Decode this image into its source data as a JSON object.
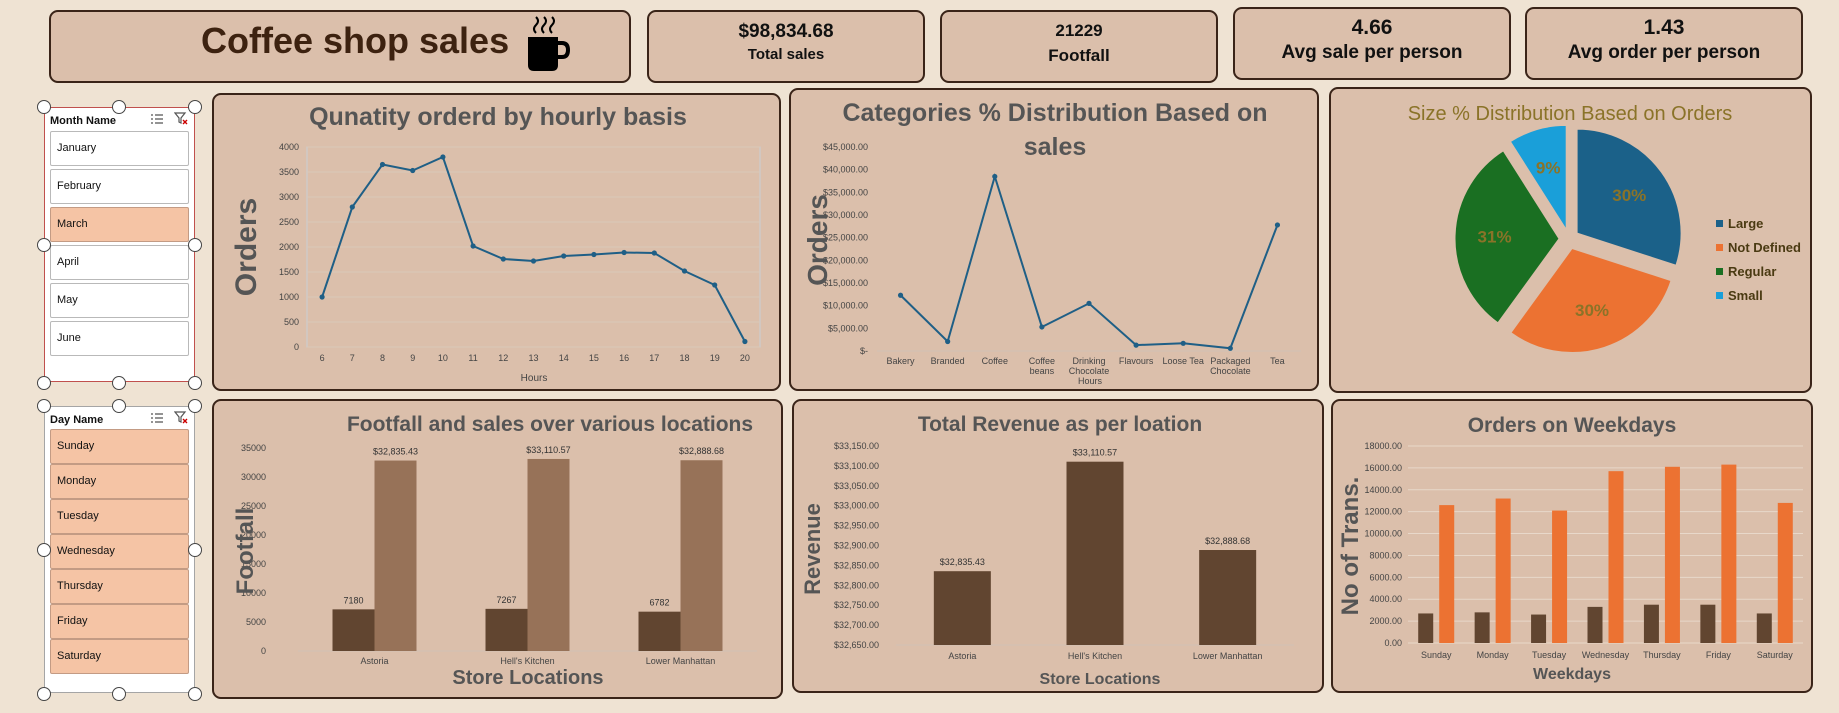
{
  "header": {
    "title": "Coffee shop sales",
    "icon": "coffee-cup-icon"
  },
  "kpis": [
    {
      "value": "$98,834.68",
      "label": "Total sales"
    },
    {
      "value": "21229",
      "label": "Footfall"
    },
    {
      "value": "4.66",
      "label": "Avg sale per person"
    },
    {
      "value": "1.43",
      "label": "Avg order per person"
    }
  ],
  "slicers": {
    "month": {
      "title": "Month Name",
      "items": [
        {
          "label": "January",
          "selected": false
        },
        {
          "label": "February",
          "selected": false
        },
        {
          "label": "March",
          "selected": true
        },
        {
          "label": "April",
          "selected": false
        },
        {
          "label": "May",
          "selected": false
        },
        {
          "label": "June",
          "selected": false
        }
      ]
    },
    "day": {
      "title": "Day Name",
      "items": [
        {
          "label": "Sunday",
          "selected": true
        },
        {
          "label": "Monday",
          "selected": true
        },
        {
          "label": "Tuesday",
          "selected": true
        },
        {
          "label": "Wednesday",
          "selected": true
        },
        {
          "label": "Thursday",
          "selected": true
        },
        {
          "label": "Friday",
          "selected": true
        },
        {
          "label": "Saturday",
          "selected": true
        }
      ]
    }
  },
  "colors": {
    "card_bg": "#dbbfab",
    "border": "#3a2418",
    "line": "#1f5f86",
    "bar_dark": "#614530",
    "bar_light": "#977258",
    "orange": "#ec7232",
    "pie_large": "#1b6189",
    "pie_not_defined": "#ec7232",
    "pie_regular": "#1a6f22",
    "pie_small": "#1a9fd9"
  },
  "chart_data": [
    {
      "id": "hourly",
      "type": "line",
      "title": "Qunatity orderd by hourly basis",
      "xlabel": "Hours",
      "ylabel": "Orders",
      "x": [
        "6",
        "7",
        "8",
        "9",
        "10",
        "11",
        "12",
        "13",
        "14",
        "15",
        "16",
        "17",
        "18",
        "19",
        "20"
      ],
      "values": [
        1000,
        2800,
        3650,
        3530,
        3800,
        2020,
        1760,
        1720,
        1820,
        1850,
        1890,
        1880,
        1520,
        1240,
        110
      ],
      "ylim": [
        0,
        4000
      ],
      "yticks": [
        "0",
        "500",
        "1000",
        "1500",
        "2000",
        "2500",
        "3000",
        "3500",
        "4000"
      ],
      "grid": true
    },
    {
      "id": "categories",
      "type": "line",
      "title": "Categories % Distribution Based on sales",
      "xlabel": "",
      "ylabel": "Orders",
      "categories": [
        "Bakery",
        "Branded",
        "Coffee",
        "Coffee beans",
        "Drinking Chocolate",
        "Flavours",
        "Loose Tea",
        "Packaged Chocolate",
        "Tea"
      ],
      "category_lines": [
        [
          "Bakery"
        ],
        [
          "Branded"
        ],
        [
          "Coffee"
        ],
        [
          "Coffee",
          "beans"
        ],
        [
          "Drinking",
          "Chocolate"
        ],
        [
          "Flavours"
        ],
        [
          "Loose Tea"
        ],
        [
          "Packaged",
          "Chocolate"
        ],
        [
          "Tea"
        ]
      ],
      "values": [
        12300,
        2100,
        38500,
        5300,
        10500,
        1300,
        1700,
        600,
        27800
      ],
      "ylim": [
        0,
        45000
      ],
      "yticks": [
        "$-",
        "$5,000.00",
        "$10,000.00",
        "$15,000.00",
        "$20,000.00",
        "$25,000.00",
        "$30,000.00",
        "$35,000.00",
        "$40,000.00",
        "$45,000.00"
      ],
      "overlapping_label": "Hours"
    },
    {
      "id": "size",
      "type": "pie",
      "title": "Size % Distribution Based on Orders",
      "slices": [
        {
          "name": "Large",
          "value": 30,
          "label": "30%"
        },
        {
          "name": "Not Defined",
          "value": 30,
          "label": "30%"
        },
        {
          "name": "Regular",
          "value": 31,
          "label": "31%"
        },
        {
          "name": "Small",
          "value": 9,
          "label": "9%"
        }
      ],
      "legend": "right"
    },
    {
      "id": "footfall_sales",
      "type": "bar",
      "title": "Footfall and sales over various locations",
      "xlabel": "Store Locations",
      "ylabel": "Footfall",
      "categories": [
        "Astoria",
        "Hell's Kitchen",
        "Lower Manhattan"
      ],
      "series": [
        {
          "values": [
            7180,
            7267,
            6782
          ],
          "labels": [
            "7180",
            "7267",
            "6782"
          ]
        },
        {
          "values": [
            32835.43,
            33110.57,
            32888.68
          ],
          "labels": [
            "$32,835.43",
            "$33,110.57",
            "$32,888.68"
          ]
        }
      ],
      "ylim": [
        0,
        35000
      ],
      "yticks": [
        "0",
        "5000",
        "10000",
        "15000",
        "20000",
        "25000",
        "30000",
        "35000"
      ]
    },
    {
      "id": "revenue",
      "type": "bar",
      "title": "Total Revenue as per loation",
      "xlabel": "Store Locations",
      "ylabel": "Revenue",
      "categories": [
        "Astoria",
        "Hell's Kitchen",
        "Lower Manhattan"
      ],
      "values": [
        32835.43,
        33110.57,
        32888.68
      ],
      "labels": [
        "$32,835.43",
        "$33,110.57",
        "$32,888.68"
      ],
      "ylim": [
        32650,
        33150
      ],
      "yticks": [
        "$32,650.00",
        "$32,700.00",
        "$32,750.00",
        "$32,800.00",
        "$32,850.00",
        "$32,900.00",
        "$32,950.00",
        "$33,000.00",
        "$33,050.00",
        "$33,100.00",
        "$33,150.00"
      ]
    },
    {
      "id": "weekdays",
      "type": "bar",
      "title": "Orders on Weekdays",
      "xlabel": "Weekdays",
      "ylabel": "No of Trans.",
      "categories": [
        "Sunday",
        "Monday",
        "Tuesday",
        "Wednesday",
        "Thursday",
        "Friday",
        "Saturday"
      ],
      "series": [
        {
          "values": [
            2700,
            2800,
            2600,
            3300,
            3500,
            3500,
            2700
          ]
        },
        {
          "values": [
            12600,
            13200,
            12100,
            15700,
            16100,
            16300,
            12800
          ]
        }
      ],
      "ylim": [
        0,
        18000
      ],
      "yticks": [
        "0.00",
        "2000.00",
        "4000.00",
        "6000.00",
        "8000.00",
        "10000.00",
        "12000.00",
        "14000.00",
        "16000.00",
        "18000.00"
      ],
      "grid": true
    }
  ]
}
